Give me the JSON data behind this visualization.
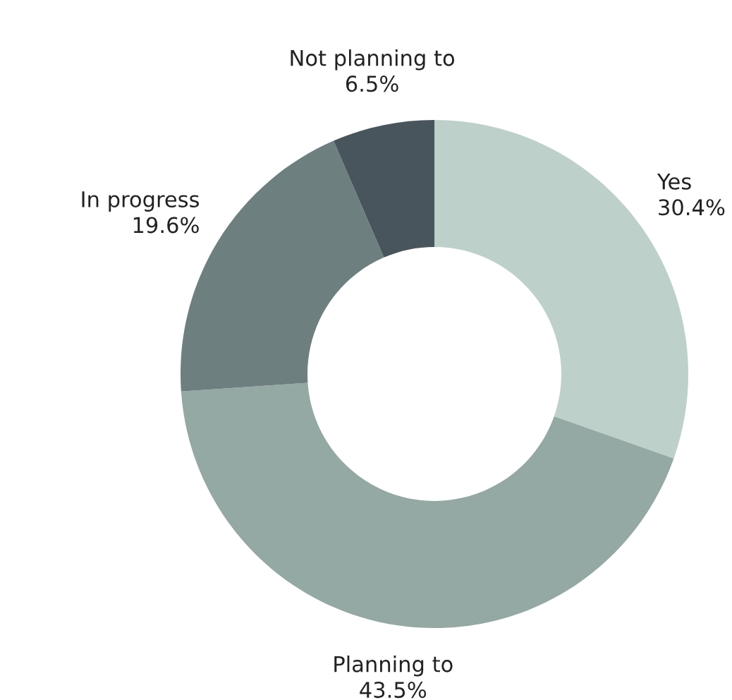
{
  "chart_data": {
    "type": "donut",
    "categories": [
      "Yes",
      "Planning to",
      "In progress",
      "Not planning to"
    ],
    "values": [
      30.4,
      43.5,
      19.6,
      6.5
    ],
    "value_labels": [
      "30.4%",
      "43.5%",
      "19.6%",
      "6.5%"
    ],
    "colors": [
      "#bdd0c9",
      "#94a8a4",
      "#6e7f80",
      "#48555c"
    ],
    "legend": false
  }
}
